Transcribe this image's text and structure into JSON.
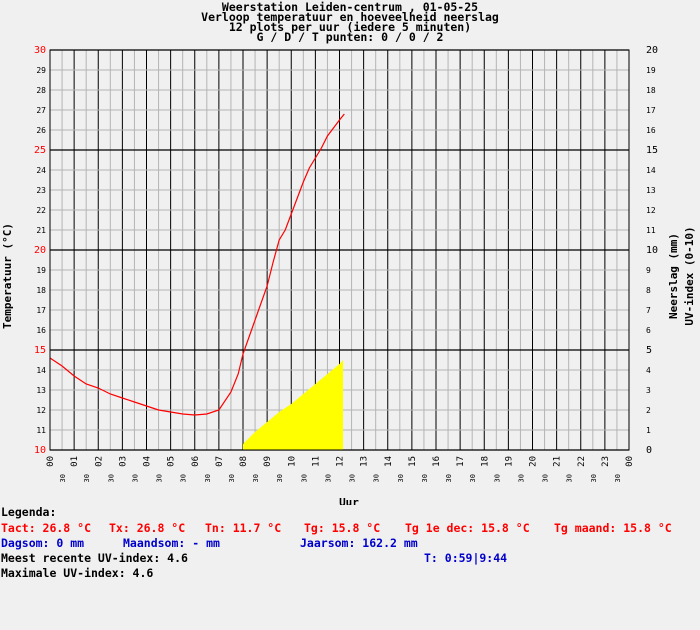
{
  "chart_data": {
    "type": "line",
    "title_lines": [
      "Weerstation Leiden-centrum , 01-05-25",
      "Verloop temperatuur en hoeveelheid neerslag",
      "12 plots per uur (iedere 5 minuten)",
      "G / D / T punten: 0 / 0 / 2"
    ],
    "xlabel": "Uur",
    "ylabel_left": "Temperatuur (°C)",
    "ylabel_right_1": "Neerslag (mm)",
    "ylabel_right_2": "UV-index (0-10)",
    "ylim_left": [
      10,
      30
    ],
    "ylim_right": [
      0,
      20
    ],
    "xlim": [
      0,
      24
    ],
    "grid": true,
    "x_ticks": [
      "00",
      "01",
      "02",
      "03",
      "04",
      "05",
      "06",
      "07",
      "08",
      "09",
      "10",
      "11",
      "12",
      "13",
      "14",
      "15",
      "16",
      "17",
      "18",
      "19",
      "20",
      "21",
      "22",
      "23",
      "00"
    ],
    "x_minor_label": "30",
    "y_ticks_left": [
      "10",
      "11",
      "12",
      "13",
      "14",
      "15",
      "16",
      "17",
      "18",
      "19",
      "20",
      "21",
      "22",
      "23",
      "24",
      "25",
      "26",
      "27",
      "28",
      "29",
      "30"
    ],
    "y_ticks_right": [
      "0",
      "1",
      "2",
      "3",
      "4",
      "5",
      "6",
      "7",
      "8",
      "9",
      "10",
      "11",
      "12",
      "13",
      "14",
      "15",
      "16",
      "17",
      "18",
      "19",
      "20"
    ],
    "colors": {
      "temperature": "#ff0000",
      "uv": "#ffff00",
      "grid": "#000000",
      "minor_grid": "#b4b4b4"
    },
    "series": [
      {
        "kind": "temperature",
        "x": [
          0,
          0.5,
          1,
          1.5,
          2,
          2.5,
          3,
          3.5,
          4,
          4.5,
          5,
          5.5,
          6,
          6.5,
          7,
          7.5,
          7.8,
          8,
          8.5,
          9,
          9.25,
          9.5,
          9.75,
          10,
          10.25,
          10.5,
          10.75,
          11,
          11.25,
          11.5,
          11.75,
          12,
          12.2
        ],
        "y": [
          14.6,
          14.2,
          13.7,
          13.3,
          13.1,
          12.8,
          12.6,
          12.4,
          12.2,
          12.0,
          11.9,
          11.8,
          11.75,
          11.8,
          12.0,
          12.9,
          13.8,
          14.8,
          16.5,
          18.2,
          19.4,
          20.5,
          21.0,
          21.8,
          22.6,
          23.4,
          24.1,
          24.6,
          25.1,
          25.7,
          26.1,
          26.5,
          26.8
        ]
      },
      {
        "kind": "uv",
        "x": [
          8,
          8.5,
          9,
          9.5,
          10,
          10.5,
          11,
          11.5,
          12,
          12.15
        ],
        "y": [
          0.3,
          0.9,
          1.4,
          1.9,
          2.3,
          2.8,
          3.3,
          3.8,
          4.3,
          4.5
        ]
      }
    ]
  },
  "legend": {
    "heading": "Legenda:",
    "tact": "Tact: 26.8 °C",
    "tx": "Tx: 26.8 °C",
    "tn": "Tn: 11.7 °C",
    "tg": "Tg: 15.8 °C",
    "tg_dec": "Tg 1e dec: 15.8 °C",
    "tg_maand": "Tg maand: 15.8 °C",
    "dagsom": "Dagsom: 0 mm",
    "maandsom": "Maandsom: - mm",
    "jaarsom": "Jaarsom: 162.2 mm",
    "uv_recent": "Meest recente UV-index: 4.6",
    "time": "T: 0:59|9:44",
    "uv_max": "Maximale UV-index: 4.6"
  }
}
